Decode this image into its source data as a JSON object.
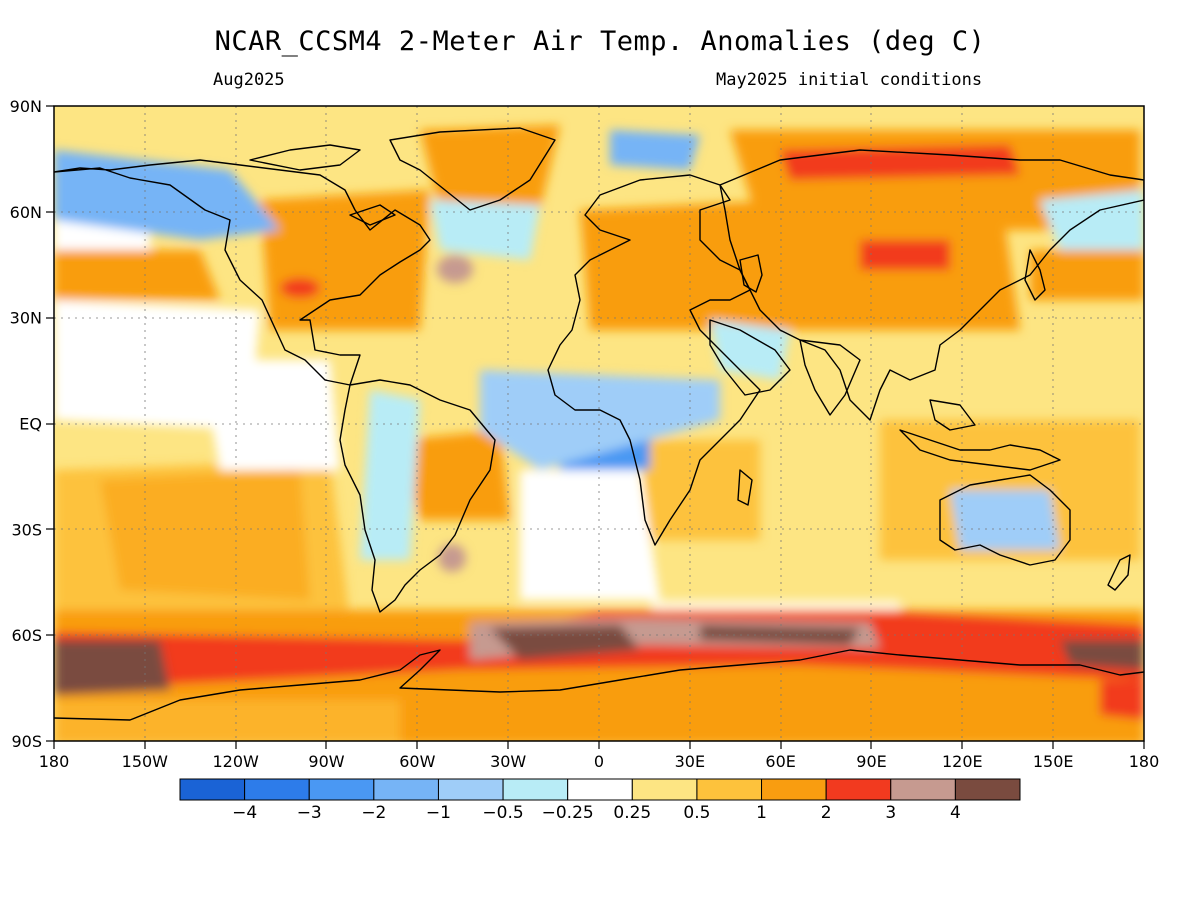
{
  "title": "NCAR_CCSM4 2-Meter Air Temp. Anomalies (deg C)",
  "subtitle_left": "Aug2025",
  "subtitle_right": "May2025 initial conditions",
  "lat_labels": [
    "90N",
    "60N",
    "30N",
    "EQ",
    "30S",
    "60S",
    "90S"
  ],
  "lon_labels": [
    "180",
    "150W",
    "120W",
    "90W",
    "60W",
    "30W",
    "0",
    "30E",
    "60E",
    "90E",
    "120E",
    "150E",
    "180"
  ],
  "colorbar": {
    "colors": [
      "#1a63d6",
      "#2d7cea",
      "#4a98f3",
      "#76b4f6",
      "#9fcdf8",
      "#b8ecf6",
      "#ffffff",
      "#fde583",
      "#fdc23c",
      "#f99d10",
      "#f23a1f",
      "#c69a90",
      "#7a4b3f"
    ],
    "labels": [
      "−4",
      "−3",
      "−2",
      "−1",
      "−0.5",
      "−0.25",
      "0.25",
      "0.5",
      "1",
      "2",
      "3",
      "4"
    ]
  }
}
